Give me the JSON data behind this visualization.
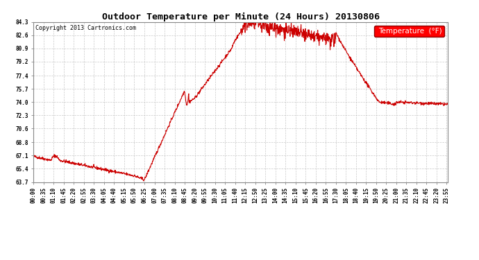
{
  "title": "Outdoor Temperature per Minute (24 Hours) 20130806",
  "copyright_text": "Copyright 2013 Cartronics.com",
  "legend_label": "Temperature  (°F)",
  "background_color": "#ffffff",
  "plot_background_color": "#ffffff",
  "line_color": "#cc0000",
  "line_width": 0.8,
  "yticks": [
    63.7,
    65.4,
    67.1,
    68.8,
    70.6,
    72.3,
    74.0,
    75.7,
    77.4,
    79.2,
    80.9,
    82.6,
    84.3
  ],
  "ylim": [
    63.7,
    84.3
  ],
  "grid_color": "#bbbbbb",
  "grid_style": "--",
  "xtick_labels": [
    "00:00",
    "00:35",
    "01:10",
    "01:45",
    "02:20",
    "02:55",
    "03:30",
    "04:05",
    "04:40",
    "05:15",
    "05:50",
    "06:25",
    "07:00",
    "07:35",
    "08:10",
    "08:45",
    "09:20",
    "09:55",
    "10:30",
    "11:05",
    "11:40",
    "12:15",
    "12:50",
    "13:25",
    "14:00",
    "14:35",
    "15:10",
    "15:45",
    "16:20",
    "16:55",
    "17:30",
    "18:05",
    "18:40",
    "19:15",
    "19:50",
    "20:25",
    "21:00",
    "21:35",
    "22:10",
    "22:45",
    "23:20",
    "23:55"
  ],
  "title_fontsize": 9.5,
  "tick_fontsize": 5.5,
  "copyright_fontsize": 6,
  "legend_fontsize": 7.5
}
